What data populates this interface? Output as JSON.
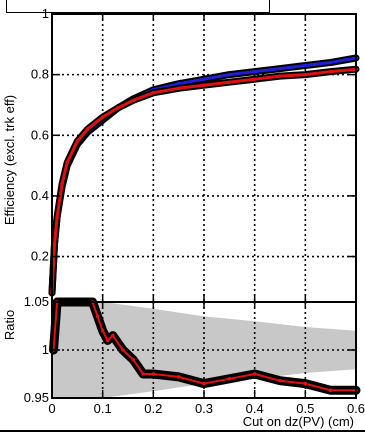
{
  "chart_data": [
    {
      "type": "line",
      "panel": "main",
      "ylabel": "Efficiency (excl. trk eff)",
      "xlim": [
        0,
        0.6
      ],
      "ylim": [
        0.05,
        1.0
      ],
      "grid": true,
      "xticks": [
        0,
        0.1,
        0.2,
        0.3,
        0.4,
        0.5,
        0.6
      ],
      "yticks": [
        0.2,
        0.4,
        0.6,
        0.8,
        1
      ],
      "ytick_labels": [
        "0.2",
        "0.4",
        "0.6",
        "0.8",
        "1"
      ],
      "series": [
        {
          "color": "#1f1fd6",
          "x": [
            0.0,
            0.005,
            0.01,
            0.02,
            0.03,
            0.05,
            0.07,
            0.1,
            0.13,
            0.16,
            0.2,
            0.25,
            0.3,
            0.35,
            0.4,
            0.45,
            0.5,
            0.55,
            0.6
          ],
          "y": [
            0.08,
            0.24,
            0.33,
            0.43,
            0.5,
            0.57,
            0.61,
            0.65,
            0.69,
            0.72,
            0.75,
            0.77,
            0.785,
            0.8,
            0.81,
            0.82,
            0.83,
            0.84,
            0.855
          ]
        },
        {
          "color": "#e01010",
          "x": [
            0.0,
            0.005,
            0.01,
            0.02,
            0.03,
            0.05,
            0.07,
            0.1,
            0.13,
            0.16,
            0.2,
            0.25,
            0.3,
            0.35,
            0.4,
            0.45,
            0.5,
            0.55,
            0.6
          ],
          "y": [
            0.08,
            0.24,
            0.33,
            0.44,
            0.51,
            0.58,
            0.62,
            0.66,
            0.69,
            0.715,
            0.74,
            0.755,
            0.765,
            0.775,
            0.785,
            0.795,
            0.8,
            0.81,
            0.818
          ]
        }
      ]
    },
    {
      "type": "line",
      "panel": "ratio",
      "ylabel": "Ratio",
      "xlabel": "Cut on dz(PV) (cm)",
      "xlim": [
        0,
        0.6
      ],
      "ylim": [
        0.95,
        1.05
      ],
      "grid": true,
      "xticks": [
        0,
        0.1,
        0.2,
        0.3,
        0.4,
        0.5,
        0.6
      ],
      "xtick_labels": [
        "0",
        "0.1",
        "0.2",
        "0.3",
        "0.4",
        "0.5",
        "0.6"
      ],
      "yticks": [
        0.95,
        1,
        1.05
      ],
      "ytick_labels": [
        "0.95",
        "1",
        "1.05"
      ],
      "band": {
        "color": "#c8c8c8",
        "x": [
          0.0,
          0.1,
          0.2,
          0.3,
          0.4,
          0.5,
          0.6
        ],
        "upper": [
          1.05,
          1.05,
          1.043,
          1.035,
          1.03,
          1.024,
          1.02
        ],
        "lower": [
          0.95,
          0.95,
          0.957,
          0.965,
          0.97,
          0.976,
          0.98
        ]
      },
      "series": [
        {
          "color": "#e01010",
          "x": [
            0.003,
            0.01,
            0.08,
            0.09,
            0.1,
            0.11,
            0.12,
            0.14,
            0.16,
            0.18,
            0.2,
            0.25,
            0.3,
            0.35,
            0.4,
            0.45,
            0.5,
            0.55,
            0.6
          ],
          "y": [
            1.0,
            1.05,
            1.05,
            1.035,
            1.02,
            1.01,
            1.015,
            1.0,
            0.99,
            0.975,
            0.975,
            0.972,
            0.965,
            0.97,
            0.975,
            0.968,
            0.965,
            0.958,
            0.958
          ]
        }
      ]
    }
  ]
}
